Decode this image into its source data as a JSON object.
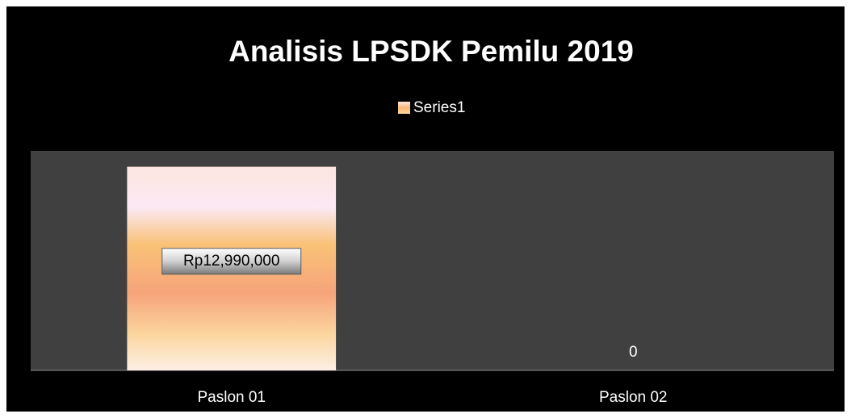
{
  "chart_data": {
    "type": "bar",
    "title": "Analisis LPSDK Pemilu 2019",
    "categories": [
      "Paslon 01",
      "Paslon 02"
    ],
    "series": [
      {
        "name": "Series1",
        "color": "#f9b878",
        "values": [
          12990000,
          0
        ],
        "value_labels": [
          "Rp12,990,000",
          "0"
        ]
      }
    ],
    "ylim": [
      0,
      14000000
    ],
    "legend": "top"
  }
}
